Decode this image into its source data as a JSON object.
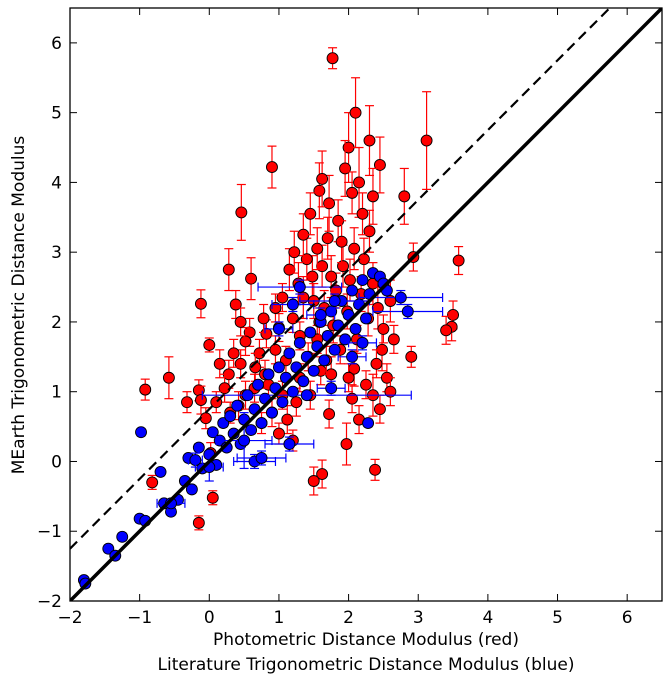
{
  "chart_data": {
    "type": "scatter",
    "title": "",
    "xlabel_lines": [
      "Photometric Distance Modulus (red)",
      "Literature Trigonometric Distance Modulus (blue)"
    ],
    "ylabel": "MEarth Trigonometric Distance Modulus",
    "xlim": [
      -2,
      6.5
    ],
    "ylim": [
      -2,
      6.5
    ],
    "x_ticks": [
      -2,
      -1,
      0,
      1,
      2,
      3,
      4,
      5,
      6
    ],
    "y_ticks": [
      -2,
      -1,
      0,
      1,
      2,
      3,
      4,
      5,
      6
    ],
    "x_tick_labels": [
      "−2",
      "−1",
      "0",
      "1",
      "2",
      "3",
      "4",
      "5",
      "6"
    ],
    "y_tick_labels": [
      "−2",
      "−1",
      "0",
      "1",
      "2",
      "3",
      "4",
      "5",
      "6"
    ],
    "grid": false,
    "colors": {
      "red_series": "#ff0000",
      "blue_series": "#0000ff",
      "lines": "#000000"
    },
    "reference_lines": [
      {
        "style": "solid",
        "slope": 1,
        "intercept": 0
      },
      {
        "style": "dashed",
        "slope": 1,
        "intercept": 0.75
      }
    ],
    "series": [
      {
        "color": "#ff0000",
        "points": [
          [
            1.77,
            5.78,
            0.15
          ],
          [
            3.12,
            4.6,
            0.7
          ],
          [
            0.9,
            4.22,
            0.3
          ],
          [
            1.58,
            3.88,
            0.4
          ],
          [
            0.46,
            3.57,
            0.4
          ],
          [
            0.28,
            2.75,
            0.3
          ],
          [
            -0.12,
            2.26,
            0.2
          ],
          [
            3.58,
            2.88,
            0.2
          ],
          [
            0.6,
            2.62,
            0.3
          ],
          [
            0.38,
            2.25,
            0.2
          ],
          [
            0.82,
            1.83,
            0.2
          ],
          [
            -0.58,
            1.2,
            0.3
          ],
          [
            -0.32,
            0.85,
            0.15
          ],
          [
            -0.15,
            1.02,
            0.15
          ],
          [
            -0.82,
            -0.3,
            0.1
          ],
          [
            -0.92,
            1.03,
            0.15
          ],
          [
            0.0,
            1.67,
            0.1
          ],
          [
            -0.12,
            0.88,
            0.2
          ],
          [
            0.42,
            0.8,
            0.2
          ],
          [
            0.52,
            0.95,
            0.2
          ],
          [
            2.93,
            2.93,
            0.2
          ],
          [
            3.5,
            2.1,
            0.2
          ],
          [
            3.48,
            1.93,
            0.2
          ],
          [
            3.4,
            1.88,
            0.2
          ],
          [
            2.9,
            1.5,
            0.15
          ],
          [
            2.48,
            1.6,
            0.3
          ],
          [
            2.35,
            0.95,
            0.3
          ],
          [
            2.38,
            -0.12,
            0.15
          ],
          [
            1.97,
            0.25,
            0.3
          ],
          [
            1.62,
            -0.18,
            0.2
          ],
          [
            1.5,
            -0.28,
            0.2
          ],
          [
            1.72,
            0.68,
            0.2
          ],
          [
            1.75,
            1.25,
            0.25
          ],
          [
            2.08,
            1.33,
            0.25
          ],
          [
            2.25,
            1.1,
            0.2
          ],
          [
            2.05,
            0.9,
            0.2
          ],
          [
            2.8,
            3.8,
            0.4
          ],
          [
            2.45,
            4.25,
            0.4
          ],
          [
            2.35,
            3.8,
            0.4
          ],
          [
            2.15,
            4.0,
            0.5
          ],
          [
            2.0,
            4.5,
            0.5
          ],
          [
            1.95,
            4.2,
            0.4
          ],
          [
            1.85,
            3.45,
            0.3
          ],
          [
            1.72,
            3.7,
            0.4
          ],
          [
            1.7,
            3.2,
            0.3
          ],
          [
            1.62,
            2.8,
            0.3
          ],
          [
            1.55,
            3.05,
            0.3
          ],
          [
            1.48,
            2.65,
            0.3
          ],
          [
            1.4,
            2.9,
            0.3
          ],
          [
            1.35,
            2.35,
            0.3
          ],
          [
            1.28,
            2.55,
            0.3
          ],
          [
            1.2,
            2.05,
            0.2
          ],
          [
            1.15,
            2.75,
            0.3
          ],
          [
            1.05,
            2.35,
            0.2
          ],
          [
            1.0,
            1.92,
            0.2
          ],
          [
            0.95,
            2.2,
            0.2
          ],
          [
            0.78,
            2.05,
            0.2
          ],
          [
            0.72,
            1.55,
            0.2
          ],
          [
            0.66,
            1.35,
            0.2
          ],
          [
            0.58,
            1.85,
            0.2
          ],
          [
            0.52,
            1.72,
            0.2
          ],
          [
            0.45,
            1.4,
            0.2
          ],
          [
            0.35,
            1.55,
            0.2
          ],
          [
            0.28,
            1.25,
            0.2
          ],
          [
            0.22,
            1.05,
            0.2
          ],
          [
            0.15,
            1.4,
            0.2
          ],
          [
            0.1,
            0.85,
            0.15
          ],
          [
            -0.05,
            0.62,
            0.15
          ],
          [
            0.85,
            1.1,
            0.2
          ],
          [
            0.9,
            0.7,
            0.2
          ],
          [
            1.05,
            0.95,
            0.2
          ],
          [
            1.12,
            0.6,
            0.2
          ],
          [
            1.25,
            0.85,
            0.2
          ],
          [
            1.3,
            1.2,
            0.2
          ],
          [
            1.42,
            1.5,
            0.2
          ],
          [
            1.45,
            0.95,
            0.2
          ],
          [
            1.55,
            1.75,
            0.2
          ],
          [
            1.6,
            1.3,
            0.2
          ],
          [
            1.65,
            2.2,
            0.25
          ],
          [
            1.78,
            1.95,
            0.25
          ],
          [
            1.82,
            2.45,
            0.25
          ],
          [
            1.88,
            1.6,
            0.2
          ],
          [
            1.92,
            2.8,
            0.3
          ],
          [
            1.98,
            2.15,
            0.25
          ],
          [
            2.02,
            2.6,
            0.3
          ],
          [
            2.08,
            3.05,
            0.3
          ],
          [
            2.12,
            1.75,
            0.2
          ],
          [
            2.18,
            2.4,
            0.25
          ],
          [
            2.22,
            2.9,
            0.3
          ],
          [
            2.28,
            2.05,
            0.25
          ],
          [
            2.3,
            3.3,
            0.3
          ],
          [
            2.35,
            2.55,
            0.3
          ],
          [
            2.4,
            1.4,
            0.2
          ],
          [
            2.42,
            2.2,
            0.3
          ],
          [
            2.5,
            1.9,
            0.2
          ],
          [
            2.55,
            1.2,
            0.2
          ],
          [
            2.6,
            2.3,
            0.3
          ],
          [
            2.65,
            1.75,
            0.2
          ],
          [
            2.2,
            3.55,
            0.3
          ],
          [
            2.05,
            3.85,
            0.3
          ],
          [
            1.9,
            3.15,
            0.3
          ],
          [
            1.75,
            2.65,
            0.3
          ],
          [
            1.5,
            2.3,
            0.25
          ],
          [
            1.3,
            1.8,
            0.2
          ],
          [
            1.1,
            1.45,
            0.2
          ],
          [
            0.95,
            1.6,
            0.2
          ],
          [
            0.8,
            1.25,
            0.2
          ],
          [
            0.65,
            1.05,
            0.2
          ],
          [
            0.75,
            0.55,
            0.15
          ],
          [
            1.0,
            0.4,
            0.15
          ],
          [
            1.2,
            0.3,
            0.15
          ],
          [
            0.3,
            0.7,
            0.15
          ],
          [
            0.05,
            -0.52,
            0.1
          ],
          [
            -0.15,
            -0.88,
            0.1
          ],
          [
            0.02,
            0.12,
            0.15
          ],
          [
            2.3,
            4.6,
            0.5
          ],
          [
            2.1,
            5.0,
            0.5
          ],
          [
            1.58,
            2.0,
            0.2
          ],
          [
            1.68,
            1.45,
            0.2
          ],
          [
            2.0,
            1.2,
            0.2
          ],
          [
            2.15,
            0.6,
            0.2
          ],
          [
            2.45,
            0.75,
            0.2
          ],
          [
            2.6,
            1.0,
            0.2
          ],
          [
            0.45,
            2.0,
            0.2
          ],
          [
            1.35,
            3.25,
            0.3
          ],
          [
            1.22,
            3.0,
            0.3
          ],
          [
            1.45,
            3.55,
            0.3
          ],
          [
            1.62,
            4.05,
            0.4
          ]
        ]
      },
      {
        "color": "#0000ff",
        "points": [
          [
            -1.8,
            -1.7,
            0.05,
            0.05
          ],
          [
            -1.78,
            -1.75,
            0.05,
            0.05
          ],
          [
            -1.45,
            -1.25,
            0.05,
            0.05
          ],
          [
            -1.35,
            -1.35,
            0.05,
            0.05
          ],
          [
            -1.25,
            -1.08,
            0.05,
            0.05
          ],
          [
            -1.0,
            -0.82,
            0.05,
            0.05
          ],
          [
            -0.92,
            -0.85,
            0.05,
            0.05
          ],
          [
            -0.98,
            0.42,
            0.05,
            0.05
          ],
          [
            -0.7,
            -0.15,
            0.05,
            0.05
          ],
          [
            -0.65,
            -0.6,
            0.05,
            0.05
          ],
          [
            -0.55,
            -0.72,
            0.05,
            0.05
          ],
          [
            -0.45,
            -0.55,
            0.05,
            0.05
          ],
          [
            -0.35,
            -0.28,
            0.05,
            0.05
          ],
          [
            -0.3,
            0.05,
            0.05,
            0.05
          ],
          [
            -0.25,
            -0.4,
            0.05,
            0.05
          ],
          [
            -0.15,
            0.2,
            0.05,
            0.05
          ],
          [
            -0.1,
            -0.1,
            0.05,
            0.05
          ],
          [
            0.0,
            0.1,
            0.05,
            0.05
          ],
          [
            0.05,
            0.42,
            0.05,
            0.05
          ],
          [
            0.1,
            -0.05,
            0.05,
            0.05
          ],
          [
            0.15,
            0.3,
            0.05,
            0.05
          ],
          [
            0.2,
            0.55,
            0.05,
            0.05
          ],
          [
            0.25,
            0.2,
            0.05,
            0.05
          ],
          [
            0.3,
            0.65,
            0.05,
            0.05
          ],
          [
            0.35,
            0.4,
            0.05,
            0.05
          ],
          [
            0.4,
            0.8,
            0.05,
            0.05
          ],
          [
            0.45,
            0.25,
            0.05,
            0.05
          ],
          [
            0.5,
            0.6,
            0.05,
            0.05
          ],
          [
            0.55,
            0.95,
            0.05,
            0.05
          ],
          [
            0.6,
            0.45,
            0.05,
            0.05
          ],
          [
            0.65,
            0.75,
            0.05,
            0.05
          ],
          [
            0.7,
            1.1,
            0.05,
            0.05
          ],
          [
            0.75,
            0.55,
            0.05,
            0.05
          ],
          [
            0.8,
            0.9,
            0.05,
            0.05
          ],
          [
            0.85,
            1.25,
            0.05,
            0.05
          ],
          [
            0.9,
            0.7,
            0.05,
            0.05
          ],
          [
            0.95,
            1.05,
            0.05,
            0.05
          ],
          [
            1.0,
            1.35,
            0.05,
            0.05
          ],
          [
            1.05,
            0.85,
            0.05,
            0.05
          ],
          [
            1.1,
            1.2,
            0.05,
            0.05
          ],
          [
            1.15,
            1.55,
            0.05,
            0.05
          ],
          [
            1.2,
            1.0,
            0.05,
            0.05
          ],
          [
            1.25,
            1.35,
            0.05,
            0.05
          ],
          [
            1.3,
            1.7,
            0.05,
            0.05
          ],
          [
            1.35,
            1.15,
            0.05,
            0.05
          ],
          [
            1.4,
            1.5,
            0.05,
            0.05
          ],
          [
            1.45,
            1.85,
            0.05,
            0.05
          ],
          [
            1.5,
            1.3,
            0.05,
            0.05
          ],
          [
            1.55,
            1.65,
            0.05,
            0.05
          ],
          [
            1.6,
            2.0,
            0.05,
            0.05
          ],
          [
            1.65,
            1.45,
            0.05,
            0.05
          ],
          [
            1.7,
            1.8,
            0.05,
            0.05
          ],
          [
            1.75,
            2.15,
            0.05,
            0.05
          ],
          [
            1.8,
            1.6,
            0.05,
            0.05
          ],
          [
            1.85,
            1.95,
            0.05,
            0.05
          ],
          [
            1.9,
            2.3,
            0.05,
            0.05
          ],
          [
            1.95,
            1.75,
            0.05,
            0.05
          ],
          [
            2.0,
            2.1,
            0.05,
            0.05
          ],
          [
            2.05,
            2.45,
            0.05,
            0.05
          ],
          [
            2.1,
            1.9,
            0.05,
            0.05
          ],
          [
            2.15,
            2.25,
            0.05,
            0.05
          ],
          [
            2.2,
            2.6,
            0.05,
            0.05
          ],
          [
            2.25,
            2.05,
            0.05,
            0.05
          ],
          [
            2.3,
            2.4,
            0.05,
            0.05
          ],
          [
            2.35,
            2.7,
            0.05,
            0.05
          ],
          [
            2.45,
            2.65,
            0.05,
            0.05
          ],
          [
            2.5,
            2.55,
            0.05,
            0.05
          ],
          [
            2.55,
            2.45,
            0.05,
            0.05
          ],
          [
            1.4,
            0.95,
            1.5,
            0.05
          ],
          [
            1.3,
            2.5,
            0.6,
            0.1
          ],
          [
            1.8,
            2.3,
            0.5,
            0.1
          ],
          [
            2.75,
            2.35,
            0.6,
            0.1
          ],
          [
            2.85,
            2.15,
            0.5,
            0.1
          ],
          [
            0.5,
            0.3,
            0.4,
            0.4
          ],
          [
            0.65,
            0.0,
            0.3,
            0.1
          ],
          [
            0.75,
            0.05,
            0.35,
            0.1
          ],
          [
            1.15,
            0.25,
            0.35,
            0.1
          ],
          [
            2.28,
            0.55,
            0.05,
            0.05
          ],
          [
            -0.55,
            -0.6,
            0.2,
            0.05
          ],
          [
            -0.2,
            0.02,
            0.1,
            0.1
          ],
          [
            0.0,
            -0.08,
            0.2,
            0.2
          ],
          [
            1.0,
            1.9,
            0.2,
            0.1
          ],
          [
            1.6,
            2.1,
            0.2,
            0.1
          ],
          [
            2.05,
            1.5,
            0.2,
            0.1
          ],
          [
            1.75,
            1.05,
            0.2,
            0.1
          ],
          [
            2.2,
            1.7,
            0.2,
            0.1
          ],
          [
            1.2,
            2.25,
            0.3,
            0.1
          ]
        ]
      }
    ]
  }
}
